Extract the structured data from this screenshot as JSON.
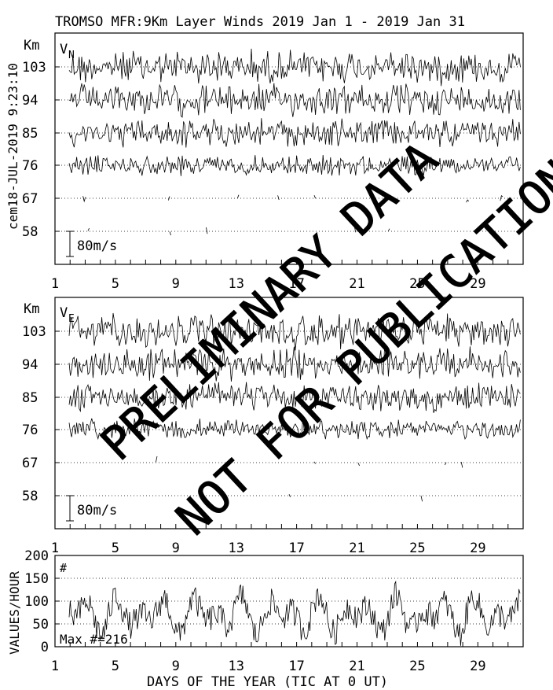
{
  "header": {
    "title": "TROMSO MFR:9Km Layer Winds 2019 Jan  1 - 2019 Jan 31",
    "side_stamp": "cem18-JUL-2019  9:23:10"
  },
  "watermark": {
    "line1": "PRELIMINARY DATA",
    "line2": "NOT FOR PUBLICATION"
  },
  "chart_data": [
    {
      "type": "line",
      "panel": "V_N",
      "component_label": "V",
      "component_sub": "N",
      "ylabel": "Km",
      "height_ticks": [
        103,
        94,
        85,
        76,
        67,
        58
      ],
      "x_ticks": [
        1,
        5,
        9,
        13,
        17,
        21,
        25,
        29
      ],
      "xlim": [
        1,
        32
      ],
      "scale_label": "80m/s",
      "scale_ms": 80,
      "series_style": "noisy wind traces per height layer; traces at 67 and 58 km sparse"
    },
    {
      "type": "line",
      "panel": "V_E",
      "component_label": "V",
      "component_sub": "E",
      "ylabel": "Km",
      "height_ticks": [
        103,
        94,
        85,
        76,
        67,
        58
      ],
      "x_ticks": [
        1,
        5,
        9,
        13,
        17,
        21,
        25,
        29
      ],
      "xlim": [
        1,
        32
      ],
      "scale_label": "80m/s",
      "scale_ms": 80,
      "series_style": "noisy wind traces per height layer; traces at 67 and 58 km sparse"
    },
    {
      "type": "line",
      "panel": "values_per_hour",
      "ylabel": "VALUES/HOUR",
      "xlabel": "DAYS OF THE YEAR (TIC AT 0 UT)",
      "ylim": [
        0,
        200
      ],
      "y_ticks": [
        0,
        50,
        100,
        150,
        200
      ],
      "x_ticks": [
        1,
        5,
        9,
        13,
        17,
        21,
        25,
        29
      ],
      "xlim": [
        1,
        32
      ],
      "marker_label": "#",
      "max_label": "Max #=216",
      "gridlines": [
        50,
        100,
        150
      ],
      "series_style": "hourly counts fluctuating mostly between 20 and 150"
    }
  ]
}
